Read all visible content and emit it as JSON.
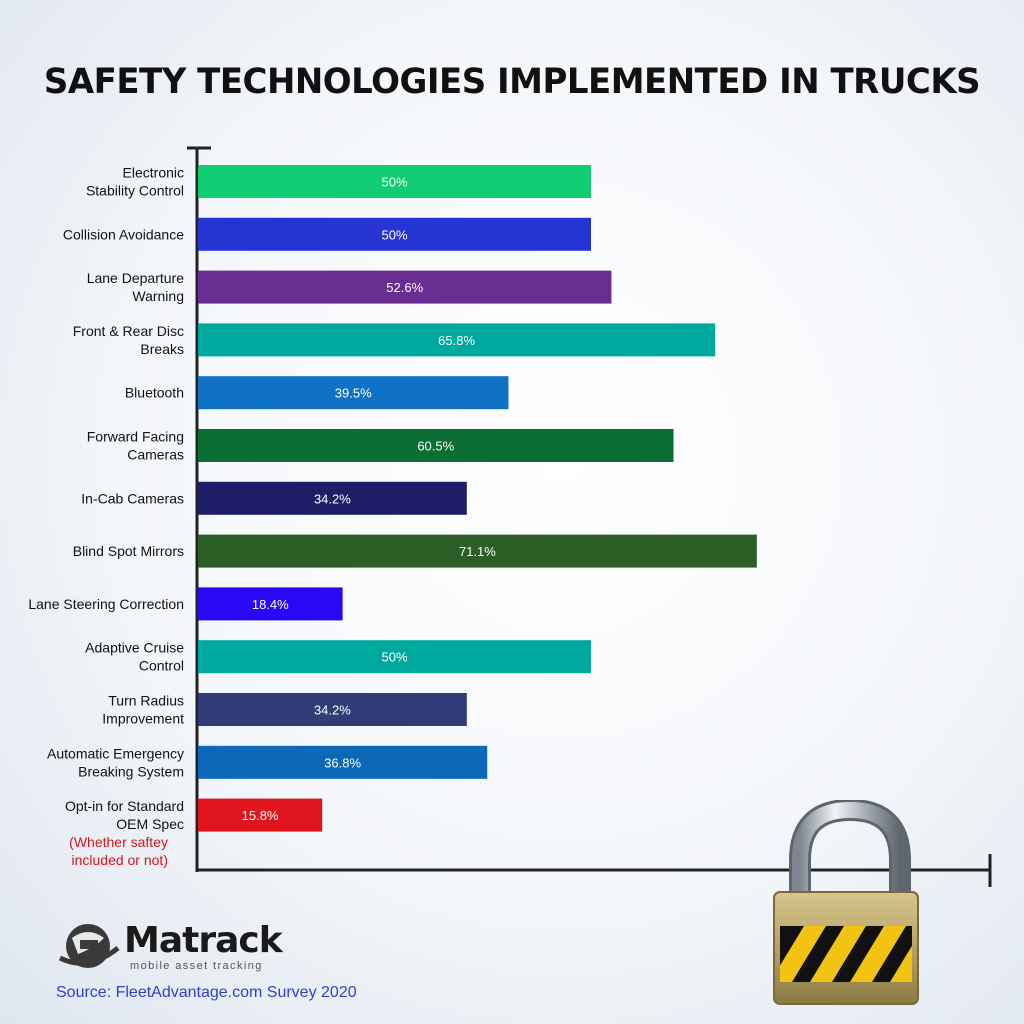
{
  "chart_data": {
    "type": "bar",
    "orientation": "horizontal",
    "title": "SAFETY TECHNOLOGIES IMPLEMENTED IN TRUCKS",
    "xlim": [
      0,
      100
    ],
    "grid": false,
    "categories": [
      {
        "lines": [
          "Electronic",
          "Stability Control"
        ]
      },
      {
        "lines": [
          "Collision Avoidance"
        ]
      },
      {
        "lines": [
          "Lane Departure",
          "Warning"
        ]
      },
      {
        "lines": [
          "Front & Rear Disc",
          "Breaks"
        ]
      },
      {
        "lines": [
          "Bluetooth"
        ]
      },
      {
        "lines": [
          "Forward Facing",
          "Cameras"
        ]
      },
      {
        "lines": [
          "In-Cab Cameras"
        ]
      },
      {
        "lines": [
          "Blind Spot Mirrors"
        ]
      },
      {
        "lines": [
          "Lane Steering Correction"
        ]
      },
      {
        "lines": [
          "Adaptive  Cruise",
          "Control"
        ]
      },
      {
        "lines": [
          "Turn Radius",
          "Improvement"
        ]
      },
      {
        "lines": [
          "Automatic Emergency",
          "Breaking System"
        ]
      },
      {
        "lines": [
          "Opt-in for Standard",
          "OEM Spec"
        ],
        "note": [
          "(Whether saftey",
          "included or not)"
        ]
      }
    ],
    "values": [
      50,
      50,
      52.6,
      65.8,
      39.5,
      60.5,
      34.2,
      71.1,
      18.4,
      50,
      34.2,
      36.8,
      15.8
    ],
    "value_labels": [
      "50%",
      "50%",
      "52.6%",
      "65.8%",
      "39.5%",
      "60.5%",
      "34.2%",
      "71.1%",
      "18.4%",
      "50%",
      "34.2%",
      "36.8%",
      "15.8%"
    ],
    "colors": [
      "#12cc72",
      "#2534d2",
      "#6a2e93",
      "#00a99d",
      "#0f72c4",
      "#0b6e32",
      "#1e1e68",
      "#2c5f25",
      "#2b08f5",
      "#00a99d",
      "#2f3c78",
      "#0c68b8",
      "#e0161e"
    ]
  },
  "brand": {
    "name": "Matrack",
    "tagline": "mobile asset tracking"
  },
  "source": "Source: FleetAdvantage.com Survey 2020",
  "decor": {
    "padlock": "padlock-icon",
    "logo_mark": "globe-truck-icon"
  }
}
